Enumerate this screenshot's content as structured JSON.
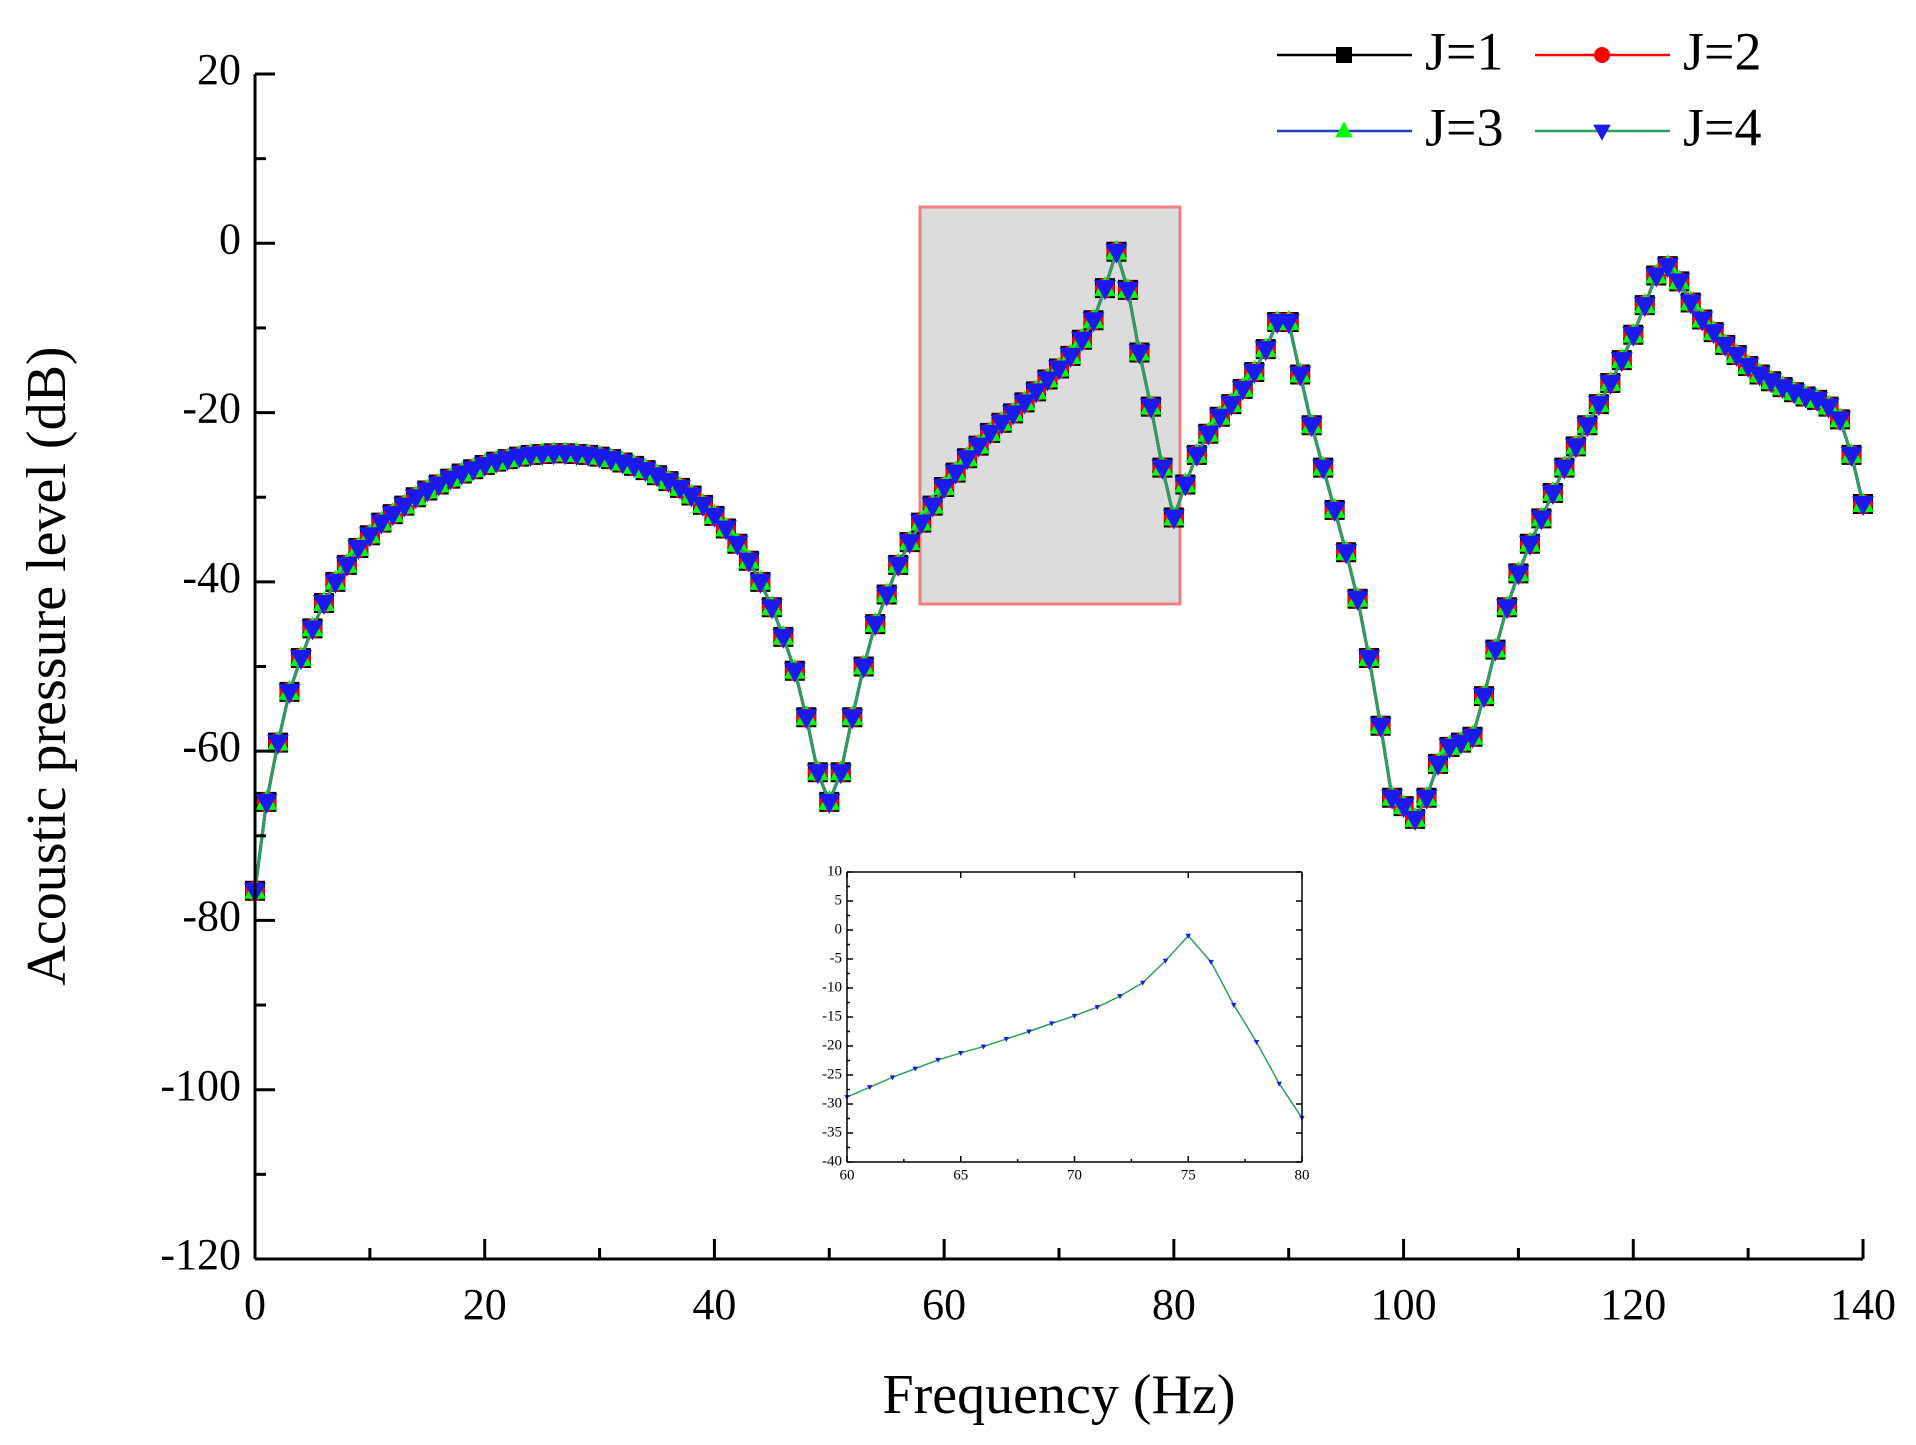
{
  "chart_data": [
    {
      "type": "line",
      "xlabel": "Frequency (Hz)",
      "ylabel": "Acoustic pressure level (dB)",
      "xlim": [
        0,
        140
      ],
      "xticks": [
        0,
        20,
        40,
        60,
        80,
        100,
        120,
        140
      ],
      "ylim": [
        -120,
        20
      ],
      "yticks": [
        -120,
        -100,
        -80,
        -60,
        -40,
        -20,
        0,
        20
      ],
      "legend": "upper right",
      "x": [
        0,
        1,
        2,
        3,
        4,
        5,
        6,
        7,
        8,
        9,
        10,
        11,
        12,
        13,
        14,
        15,
        16,
        17,
        18,
        19,
        20,
        21,
        22,
        23,
        24,
        25,
        26,
        27,
        28,
        29,
        30,
        31,
        32,
        33,
        34,
        35,
        36,
        37,
        38,
        39,
        40,
        41,
        42,
        43,
        44,
        45,
        46,
        47,
        48,
        49,
        50,
        51,
        52,
        53,
        54,
        55,
        56,
        57,
        58,
        59,
        60,
        61,
        62,
        63,
        64,
        65,
        66,
        67,
        68,
        69,
        70,
        71,
        72,
        73,
        74,
        75,
        76,
        77,
        78,
        79,
        80,
        81,
        82,
        83,
        84,
        85,
        86,
        87,
        88,
        89,
        90,
        91,
        92,
        93,
        94,
        95,
        96,
        97,
        98,
        99,
        100,
        101,
        102,
        103,
        104,
        105,
        106,
        107,
        108,
        109,
        110,
        111,
        112,
        113,
        114,
        115,
        116,
        117,
        118,
        119,
        120,
        121,
        122,
        123,
        124,
        125,
        126,
        127,
        128,
        129,
        130,
        131,
        132,
        133,
        134,
        135,
        136,
        137,
        138,
        139,
        140
      ],
      "series": [
        {
          "name": "J=1",
          "color": "#000000",
          "marker": "square",
          "marker_color": "#000000",
          "values": [
            -76.5,
            -66,
            -59,
            -53,
            -49,
            -45.5,
            -42.5,
            -40,
            -38,
            -36,
            -34.5,
            -33,
            -32,
            -31,
            -30,
            -29.2,
            -28.5,
            -27.8,
            -27.2,
            -26.7,
            -26.2,
            -25.8,
            -25.5,
            -25.2,
            -25,
            -24.9,
            -24.8,
            -24.8,
            -24.9,
            -25,
            -25.2,
            -25.5,
            -25.9,
            -26.3,
            -26.8,
            -27.4,
            -28.1,
            -28.9,
            -29.8,
            -30.9,
            -32.2,
            -33.7,
            -35.5,
            -37.5,
            -40,
            -43,
            -46.5,
            -50.5,
            -56,
            -62.5,
            -66,
            -62.5,
            -56,
            -50,
            -45,
            -41.5,
            -38,
            -35.3,
            -33,
            -31,
            -28.8,
            -27.1,
            -25.4,
            -23.9,
            -22.4,
            -21.2,
            -20.1,
            -18.8,
            -17.5,
            -16.1,
            -14.8,
            -13.3,
            -11.4,
            -9.1,
            -5.3,
            -1,
            -5.5,
            -12.9,
            -19.3,
            -26.5,
            -32.4,
            -28.5,
            -25,
            -22.5,
            -20.5,
            -19,
            -17.2,
            -15.2,
            -12.5,
            -9.3,
            -9.3,
            -15.5,
            -21.5,
            -26.5,
            -31.5,
            -36.5,
            -42,
            -49,
            -57,
            -65.5,
            -66.5,
            -68,
            -65.5,
            -61.5,
            -59.5,
            -59,
            -58.3,
            -53.5,
            -48,
            -43,
            -39,
            -35.5,
            -32.5,
            -29.5,
            -26.5,
            -24,
            -21.5,
            -19,
            -16.5,
            -13.8,
            -10.8,
            -7.3,
            -3.8,
            -2.7,
            -4.5,
            -7,
            -9,
            -10.5,
            -12,
            -13.2,
            -14.5,
            -15.5,
            -16.3,
            -17,
            -17.6,
            -18.1,
            -18.5,
            -19.3,
            -20.8,
            -25,
            -30.8
          ]
        },
        {
          "name": "J=2",
          "color": "#ff0000",
          "marker": "circle",
          "marker_color": "#ff0000",
          "values": [
            -76.5,
            -66,
            -59,
            -53,
            -49,
            -45.5,
            -42.5,
            -40,
            -38,
            -36,
            -34.5,
            -33,
            -32,
            -31,
            -30,
            -29.2,
            -28.5,
            -27.8,
            -27.2,
            -26.7,
            -26.2,
            -25.8,
            -25.5,
            -25.2,
            -25,
            -24.9,
            -24.8,
            -24.8,
            -24.9,
            -25,
            -25.2,
            -25.5,
            -25.9,
            -26.3,
            -26.8,
            -27.4,
            -28.1,
            -28.9,
            -29.8,
            -30.9,
            -32.2,
            -33.7,
            -35.5,
            -37.5,
            -40,
            -43,
            -46.5,
            -50.5,
            -56,
            -62.5,
            -66,
            -62.5,
            -56,
            -50,
            -45,
            -41.5,
            -38,
            -35.3,
            -33,
            -31,
            -28.8,
            -27.1,
            -25.4,
            -23.9,
            -22.4,
            -21.2,
            -20.1,
            -18.8,
            -17.5,
            -16.1,
            -14.8,
            -13.3,
            -11.4,
            -9.1,
            -5.3,
            -1,
            -5.5,
            -12.9,
            -19.3,
            -26.5,
            -32.4,
            -28.5,
            -25,
            -22.5,
            -20.5,
            -19,
            -17.2,
            -15.2,
            -12.5,
            -9.3,
            -9.3,
            -15.5,
            -21.5,
            -26.5,
            -31.5,
            -36.5,
            -42,
            -49,
            -57,
            -65.5,
            -66.5,
            -68,
            -65.5,
            -61.5,
            -59.5,
            -59,
            -58.3,
            -53.5,
            -48,
            -43,
            -39,
            -35.5,
            -32.5,
            -29.5,
            -26.5,
            -24,
            -21.5,
            -19,
            -16.5,
            -13.8,
            -10.8,
            -7.3,
            -3.8,
            -2.7,
            -4.5,
            -7,
            -9,
            -10.5,
            -12,
            -13.2,
            -14.5,
            -15.5,
            -16.3,
            -17,
            -17.6,
            -18.1,
            -18.5,
            -19.3,
            -20.8,
            -25,
            -30.8
          ]
        },
        {
          "name": "J=3",
          "color": "#1f3fbf",
          "marker": "triangle-up",
          "marker_color": "#00ff00",
          "values": [
            -76.5,
            -66,
            -59,
            -53,
            -49,
            -45.5,
            -42.5,
            -40,
            -38,
            -36,
            -34.5,
            -33,
            -32,
            -31,
            -30,
            -29.2,
            -28.5,
            -27.8,
            -27.2,
            -26.7,
            -26.2,
            -25.8,
            -25.5,
            -25.2,
            -25,
            -24.9,
            -24.8,
            -24.8,
            -24.9,
            -25,
            -25.2,
            -25.5,
            -25.9,
            -26.3,
            -26.8,
            -27.4,
            -28.1,
            -28.9,
            -29.8,
            -30.9,
            -32.2,
            -33.7,
            -35.5,
            -37.5,
            -40,
            -43,
            -46.5,
            -50.5,
            -56,
            -62.5,
            -66,
            -62.5,
            -56,
            -50,
            -45,
            -41.5,
            -38,
            -35.3,
            -33,
            -31,
            -28.8,
            -27.1,
            -25.4,
            -23.9,
            -22.4,
            -21.2,
            -20.1,
            -18.8,
            -17.5,
            -16.1,
            -14.8,
            -13.3,
            -11.4,
            -9.1,
            -5.3,
            -1,
            -5.5,
            -12.9,
            -19.3,
            -26.5,
            -32.4,
            -28.5,
            -25,
            -22.5,
            -20.5,
            -19,
            -17.2,
            -15.2,
            -12.5,
            -9.3,
            -9.3,
            -15.5,
            -21.5,
            -26.5,
            -31.5,
            -36.5,
            -42,
            -49,
            -57,
            -65.5,
            -66.5,
            -68,
            -65.5,
            -61.5,
            -59.5,
            -59,
            -58.3,
            -53.5,
            -48,
            -43,
            -39,
            -35.5,
            -32.5,
            -29.5,
            -26.5,
            -24,
            -21.5,
            -19,
            -16.5,
            -13.8,
            -10.8,
            -7.3,
            -3.8,
            -2.7,
            -4.5,
            -7,
            -9,
            -10.5,
            -12,
            -13.2,
            -14.5,
            -15.5,
            -16.3,
            -17,
            -17.6,
            -18.1,
            -18.5,
            -19.3,
            -20.8,
            -25,
            -30.8
          ]
        },
        {
          "name": "J=4",
          "color": "#2e9e5e",
          "marker": "triangle-down",
          "marker_color": "#1a1aee",
          "values": [
            -76.5,
            -66,
            -59,
            -53,
            -49,
            -45.5,
            -42.5,
            -40,
            -38,
            -36,
            -34.5,
            -33,
            -32,
            -31,
            -30,
            -29.2,
            -28.5,
            -27.8,
            -27.2,
            -26.7,
            -26.2,
            -25.8,
            -25.5,
            -25.2,
            -25,
            -24.9,
            -24.8,
            -24.8,
            -24.9,
            -25,
            -25.2,
            -25.5,
            -25.9,
            -26.3,
            -26.8,
            -27.4,
            -28.1,
            -28.9,
            -29.8,
            -30.9,
            -32.2,
            -33.7,
            -35.5,
            -37.5,
            -40,
            -43,
            -46.5,
            -50.5,
            -56,
            -62.5,
            -66,
            -62.5,
            -56,
            -50,
            -45,
            -41.5,
            -38,
            -35.3,
            -33,
            -31,
            -28.8,
            -27.1,
            -25.4,
            -23.9,
            -22.4,
            -21.2,
            -20.1,
            -18.8,
            -17.5,
            -16.1,
            -14.8,
            -13.3,
            -11.4,
            -9.1,
            -5.3,
            -1,
            -5.5,
            -12.9,
            -19.3,
            -26.5,
            -32.4,
            -28.5,
            -25,
            -22.5,
            -20.5,
            -19,
            -17.2,
            -15.2,
            -12.5,
            -9.3,
            -9.3,
            -15.5,
            -21.5,
            -26.5,
            -31.5,
            -36.5,
            -42,
            -49,
            -57,
            -65.5,
            -66.5,
            -68,
            -65.5,
            -61.5,
            -59.5,
            -59,
            -58.3,
            -53.5,
            -48,
            -43,
            -39,
            -35.5,
            -32.5,
            -29.5,
            -26.5,
            -24,
            -21.5,
            -19,
            -16.5,
            -13.8,
            -10.8,
            -7.3,
            -3.8,
            -2.7,
            -4.5,
            -7,
            -9,
            -10.5,
            -12,
            -13.2,
            -14.5,
            -15.5,
            -16.3,
            -17,
            -17.6,
            -18.1,
            -18.5,
            -19.3,
            -20.8,
            -25,
            -30.8
          ]
        }
      ]
    },
    {
      "type": "line",
      "xlim": [
        60,
        80
      ],
      "xticks": [
        60,
        65,
        70,
        75,
        80
      ],
      "ylim": [
        -40,
        10
      ],
      "yticks": [
        -40,
        -35,
        -30,
        -25,
        -20,
        -15,
        -10,
        -5,
        0,
        5,
        10
      ],
      "x": [
        60,
        61,
        62,
        63,
        64,
        65,
        66,
        67,
        68,
        69,
        70,
        71,
        72,
        73,
        74,
        75,
        76,
        77,
        78,
        79,
        80
      ],
      "series": [
        {
          "color": "#2e9e5e",
          "marker": "triangle-down",
          "marker_color": "#1a1aee",
          "values": [
            -28.8,
            -27.1,
            -25.4,
            -23.9,
            -22.4,
            -21.2,
            -20.1,
            -18.8,
            -17.5,
            -16.1,
            -14.8,
            -13.3,
            -11.4,
            -9.1,
            -5.3,
            -1,
            -5.5,
            -12.9,
            -19.3,
            -26.5,
            -32.4
          ]
        }
      ]
    }
  ]
}
